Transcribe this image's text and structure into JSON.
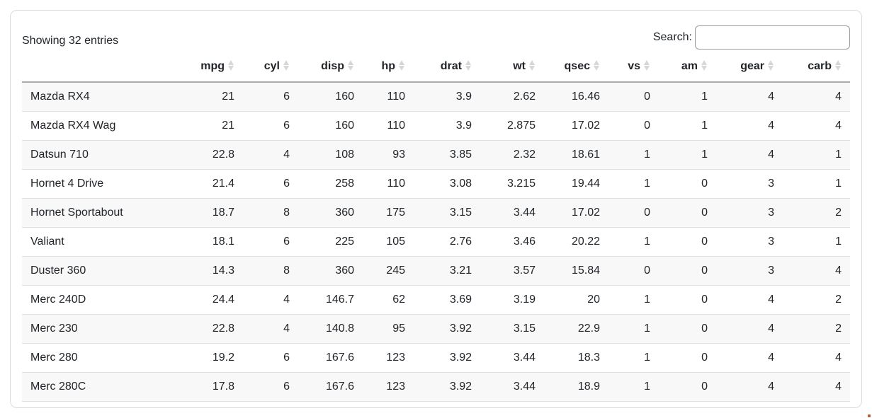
{
  "table": {
    "info": "Showing 32 entries",
    "search": {
      "label": "Search:",
      "value": "",
      "placeholder": ""
    },
    "columns": [
      {
        "label": "",
        "sortable": true,
        "sort_icon": null
      },
      {
        "label": "mpg",
        "sortable": true,
        "sort_icon": "sort-icon"
      },
      {
        "label": "cyl",
        "sortable": true,
        "sort_icon": "sort-icon"
      },
      {
        "label": "disp",
        "sortable": true,
        "sort_icon": "sort-icon"
      },
      {
        "label": "hp",
        "sortable": true,
        "sort_icon": "sort-icon"
      },
      {
        "label": "drat",
        "sortable": true,
        "sort_icon": "sort-icon"
      },
      {
        "label": "wt",
        "sortable": true,
        "sort_icon": "sort-icon"
      },
      {
        "label": "qsec",
        "sortable": true,
        "sort_icon": "sort-icon"
      },
      {
        "label": "vs",
        "sortable": true,
        "sort_icon": "sort-icon"
      },
      {
        "label": "am",
        "sortable": true,
        "sort_icon": "sort-icon"
      },
      {
        "label": "gear",
        "sortable": true,
        "sort_icon": "sort-icon"
      },
      {
        "label": "carb",
        "sortable": true,
        "sort_icon": "sort-icon"
      }
    ],
    "rows": [
      [
        "Mazda RX4",
        "21",
        "6",
        "160",
        "110",
        "3.9",
        "2.62",
        "16.46",
        "0",
        "1",
        "4",
        "4"
      ],
      [
        "Mazda RX4 Wag",
        "21",
        "6",
        "160",
        "110",
        "3.9",
        "2.875",
        "17.02",
        "0",
        "1",
        "4",
        "4"
      ],
      [
        "Datsun 710",
        "22.8",
        "4",
        "108",
        "93",
        "3.85",
        "2.32",
        "18.61",
        "1",
        "1",
        "4",
        "1"
      ],
      [
        "Hornet 4 Drive",
        "21.4",
        "6",
        "258",
        "110",
        "3.08",
        "3.215",
        "19.44",
        "1",
        "0",
        "3",
        "1"
      ],
      [
        "Hornet Sportabout",
        "18.7",
        "8",
        "360",
        "175",
        "3.15",
        "3.44",
        "17.02",
        "0",
        "0",
        "3",
        "2"
      ],
      [
        "Valiant",
        "18.1",
        "6",
        "225",
        "105",
        "2.76",
        "3.46",
        "20.22",
        "1",
        "0",
        "3",
        "1"
      ],
      [
        "Duster 360",
        "14.3",
        "8",
        "360",
        "245",
        "3.21",
        "3.57",
        "15.84",
        "0",
        "0",
        "3",
        "4"
      ],
      [
        "Merc 240D",
        "24.4",
        "4",
        "146.7",
        "62",
        "3.69",
        "3.19",
        "20",
        "1",
        "0",
        "4",
        "2"
      ],
      [
        "Merc 230",
        "22.8",
        "4",
        "140.8",
        "95",
        "3.92",
        "3.15",
        "22.9",
        "1",
        "0",
        "4",
        "2"
      ],
      [
        "Merc 280",
        "19.2",
        "6",
        "167.6",
        "123",
        "3.92",
        "3.44",
        "18.3",
        "1",
        "0",
        "4",
        "4"
      ],
      [
        "Merc 280C",
        "17.8",
        "6",
        "167.6",
        "123",
        "3.92",
        "3.44",
        "18.9",
        "1",
        "0",
        "4",
        "4"
      ]
    ],
    "colors": {
      "text": "#212529",
      "stripe": "#f8f8f9",
      "row_border": "#dee2e6",
      "header_border": "#a9adb1",
      "card_border": "#d8dbde",
      "sort_icon": "#d7d7da"
    }
  }
}
